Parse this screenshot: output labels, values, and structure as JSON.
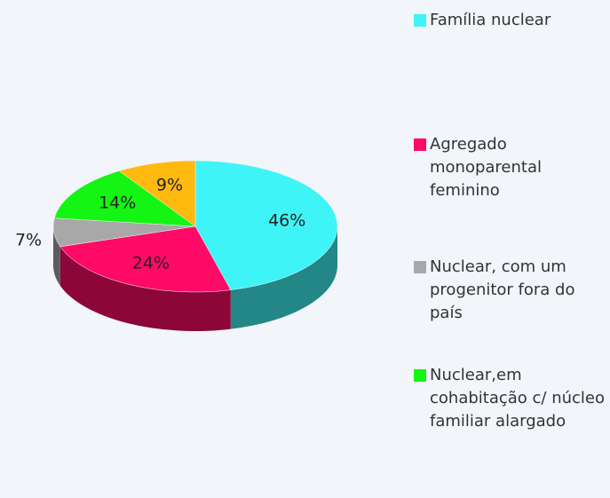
{
  "chart_data": {
    "type": "pie",
    "categories": [
      "Família nuclear",
      "Agregado monoparental feminino",
      "Nuclear, com um progenitor fora do país",
      "Nuclear,em cohabitação c/ núcleo familiar alargado",
      null
    ],
    "values": [
      46,
      24,
      7,
      14,
      9
    ],
    "value_labels": [
      "46%",
      "24%",
      "7%",
      "14%",
      "9%"
    ],
    "colors": [
      "#3ff4f6",
      "#ff0a66",
      "#a8a8a8",
      "#14f514",
      "#ffb90f"
    ]
  }
}
